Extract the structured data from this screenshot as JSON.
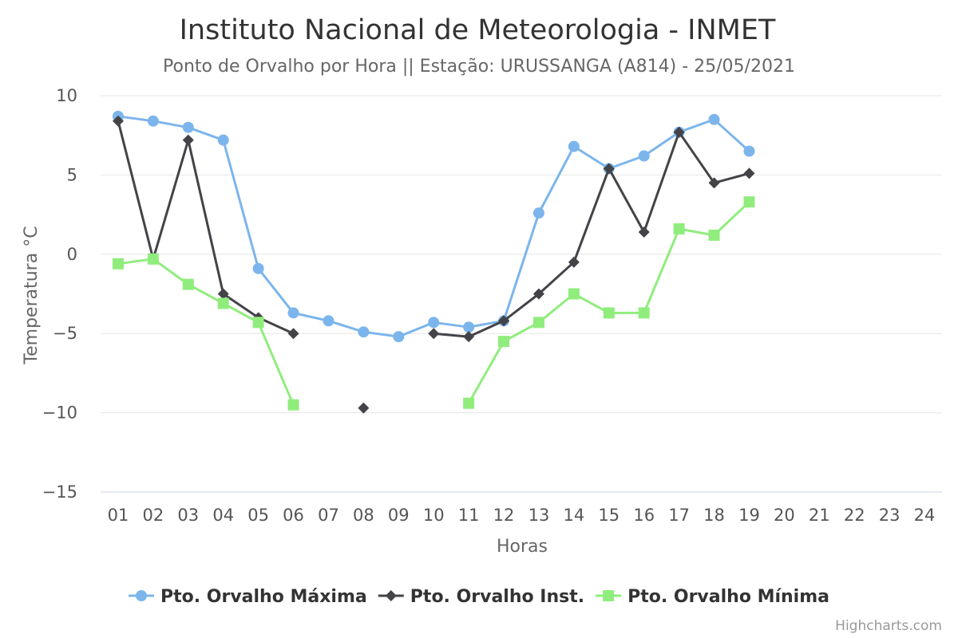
{
  "chart_data": {
    "type": "line",
    "title": "Instituto Nacional de Meteorologia - INMET",
    "subtitle": "Ponto de Orvalho por Hora || Estação: URUSSANGA (A814) - 25/05/2021",
    "xlabel": "Horas",
    "ylabel": "Temperatura °C",
    "ylim": [
      -15,
      10
    ],
    "y_ticks": [
      "10",
      "5",
      "0",
      "−5",
      "−10",
      "−15"
    ],
    "y_tick_values": [
      10,
      5,
      0,
      -5,
      -10,
      -15
    ],
    "categories": [
      "01",
      "02",
      "03",
      "04",
      "05",
      "06",
      "07",
      "08",
      "09",
      "10",
      "11",
      "12",
      "13",
      "14",
      "15",
      "16",
      "17",
      "18",
      "19",
      "20",
      "21",
      "22",
      "23",
      "24"
    ],
    "grid": true,
    "legend_position": "bottom-center",
    "series": [
      {
        "name": "Pto. Orvalho Máxima",
        "color": "#7cb5ec",
        "marker": "circle",
        "values": [
          8.7,
          8.4,
          8.0,
          7.2,
          -0.9,
          -3.7,
          -4.2,
          -4.9,
          -5.2,
          -4.3,
          -4.6,
          -4.2,
          2.6,
          6.8,
          5.4,
          6.2,
          7.7,
          8.5,
          6.5,
          null,
          null,
          null,
          null,
          null
        ]
      },
      {
        "name": "Pto. Orvalho Inst.",
        "color": "#434348",
        "marker": "diamond",
        "values": [
          8.4,
          -0.3,
          7.2,
          -2.5,
          -4.0,
          -5.0,
          null,
          -9.7,
          null,
          -5.0,
          -5.2,
          -4.2,
          -2.5,
          -0.5,
          5.4,
          1.4,
          7.7,
          4.5,
          5.1,
          null,
          null,
          null,
          null,
          null
        ]
      },
      {
        "name": "Pto. Orvalho Mínima",
        "color": "#90ed7d",
        "marker": "square",
        "values": [
          -0.6,
          -0.3,
          -1.9,
          -3.1,
          -4.3,
          -9.5,
          null,
          null,
          null,
          null,
          -9.4,
          -5.5,
          -4.3,
          -2.5,
          -3.7,
          -3.7,
          1.6,
          1.2,
          3.3,
          null,
          null,
          null,
          null,
          null
        ]
      }
    ]
  },
  "credits": "Highcharts.com"
}
